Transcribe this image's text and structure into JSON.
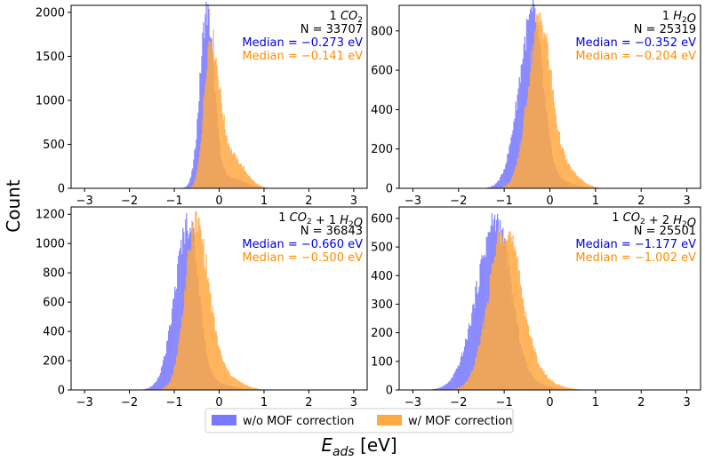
{
  "figure": {
    "ylabel": "Count",
    "xlabel_main": "E",
    "xlabel_sub": "ads",
    "xlabel_unit": " [eV]",
    "colors": {
      "without": "#7777ff",
      "with": "#ffa940",
      "median_without": "#0000dd",
      "median_with": "#ff8c00"
    }
  },
  "legend": {
    "location": "bottom-center",
    "entries": [
      {
        "label": "w/o MOF correction",
        "color": "#7777ff"
      },
      {
        "label": "w/ MOF correction",
        "color": "#ffa940"
      }
    ]
  },
  "chart_data": [
    {
      "type": "histogram",
      "title_parts": [
        [
          "1 ",
          false
        ],
        [
          "CO",
          true
        ],
        [
          "2",
          "sub"
        ]
      ],
      "n_text": "N = 33707",
      "median_without_text": "Median = −0.273 eV",
      "median_with_text": "Median = −0.141 eV",
      "xlim": [
        -3.3,
        3.3
      ],
      "ylim": [
        0,
        2080
      ],
      "xticks": [
        -3,
        -2,
        -1,
        0,
        1,
        2,
        3
      ],
      "yticks": [
        0,
        500,
        1000,
        1500,
        2000
      ],
      "series": [
        {
          "name": "w/o MOF correction",
          "peak_x": -0.28,
          "peak_y": 2000,
          "sigma_left": 0.15,
          "sigma_right": 0.16,
          "tail_amp": 0.06,
          "tail_center": 0.2,
          "tail_sigma": 0.35
        },
        {
          "name": "w/ MOF correction",
          "peak_x": -0.2,
          "peak_y": 1720,
          "sigma_left": 0.14,
          "sigma_right": 0.2,
          "tail_amp": 0.2,
          "tail_center": 0.3,
          "tail_sigma": 0.28
        }
      ]
    },
    {
      "type": "histogram",
      "title_parts": [
        [
          "1 ",
          false
        ],
        [
          "H",
          true
        ],
        [
          "2",
          "sub"
        ],
        [
          "O",
          true
        ]
      ],
      "n_text": "N = 25319",
      "median_without_text": "Median = −0.352 eV",
      "median_with_text": "Median = −0.204 eV",
      "xlim": [
        -3.3,
        3.3
      ],
      "ylim": [
        0,
        930
      ],
      "xticks": [
        -3,
        -2,
        -1,
        0,
        1,
        2,
        3
      ],
      "yticks": [
        0,
        200,
        400,
        600,
        800
      ],
      "series": [
        {
          "name": "w/o MOF correction",
          "peak_x": -0.38,
          "peak_y": 880,
          "sigma_left": 0.3,
          "sigma_right": 0.22,
          "tail_amp": 0.05,
          "tail_center": 0.1,
          "tail_sigma": 0.35
        },
        {
          "name": "w/ MOF correction",
          "peak_x": -0.22,
          "peak_y": 860,
          "sigma_left": 0.26,
          "sigma_right": 0.24,
          "tail_amp": 0.12,
          "tail_center": 0.3,
          "tail_sigma": 0.3
        }
      ]
    },
    {
      "type": "histogram",
      "title_parts": [
        [
          "1 ",
          false
        ],
        [
          "CO",
          true
        ],
        [
          "2",
          "sub"
        ],
        [
          " + 1 ",
          false
        ],
        [
          "H",
          true
        ],
        [
          "2",
          "sub"
        ],
        [
          "O",
          true
        ]
      ],
      "n_text": "N = 36843",
      "median_without_text": "Median = −0.660 eV",
      "median_with_text": "Median = −0.500 eV",
      "xlim": [
        -3.3,
        3.3
      ],
      "ylim": [
        0,
        1250
      ],
      "xticks": [
        -3,
        -2,
        -1,
        0,
        1,
        2,
        3
      ],
      "yticks": [
        0,
        200,
        400,
        600,
        800,
        1000,
        1200
      ],
      "series": [
        {
          "name": "w/o MOF correction",
          "peak_x": -0.68,
          "peak_y": 1150,
          "sigma_left": 0.3,
          "sigma_right": 0.22,
          "tail_amp": 0.04,
          "tail_center": -0.1,
          "tail_sigma": 0.35
        },
        {
          "name": "w/ MOF correction",
          "peak_x": -0.52,
          "peak_y": 1140,
          "sigma_left": 0.24,
          "sigma_right": 0.28,
          "tail_amp": 0.08,
          "tail_center": 0.1,
          "tail_sigma": 0.35
        }
      ]
    },
    {
      "type": "histogram",
      "title_parts": [
        [
          "1 ",
          false
        ],
        [
          "CO",
          true
        ],
        [
          "2",
          "sub"
        ],
        [
          " + 2 ",
          false
        ],
        [
          "H",
          true
        ],
        [
          "2",
          "sub"
        ],
        [
          "O",
          true
        ]
      ],
      "n_text": "N = 25501",
      "median_without_text": "Median = −1.177 eV",
      "median_with_text": "Median = −1.002 eV",
      "xlim": [
        -3.3,
        3.3
      ],
      "ylim": [
        0,
        640
      ],
      "xticks": [
        -3,
        -2,
        -1,
        0,
        1,
        2,
        3
      ],
      "yticks": [
        0,
        100,
        200,
        300,
        400,
        500,
        600
      ],
      "series": [
        {
          "name": "w/o MOF correction",
          "peak_x": -1.18,
          "peak_y": 590,
          "sigma_left": 0.42,
          "sigma_right": 0.32,
          "tail_amp": 0.04,
          "tail_center": -0.5,
          "tail_sigma": 0.4
        },
        {
          "name": "w/ MOF correction",
          "peak_x": -1.0,
          "peak_y": 570,
          "sigma_left": 0.34,
          "sigma_right": 0.36,
          "tail_amp": 0.06,
          "tail_center": -0.3,
          "tail_sigma": 0.4
        }
      ]
    }
  ]
}
